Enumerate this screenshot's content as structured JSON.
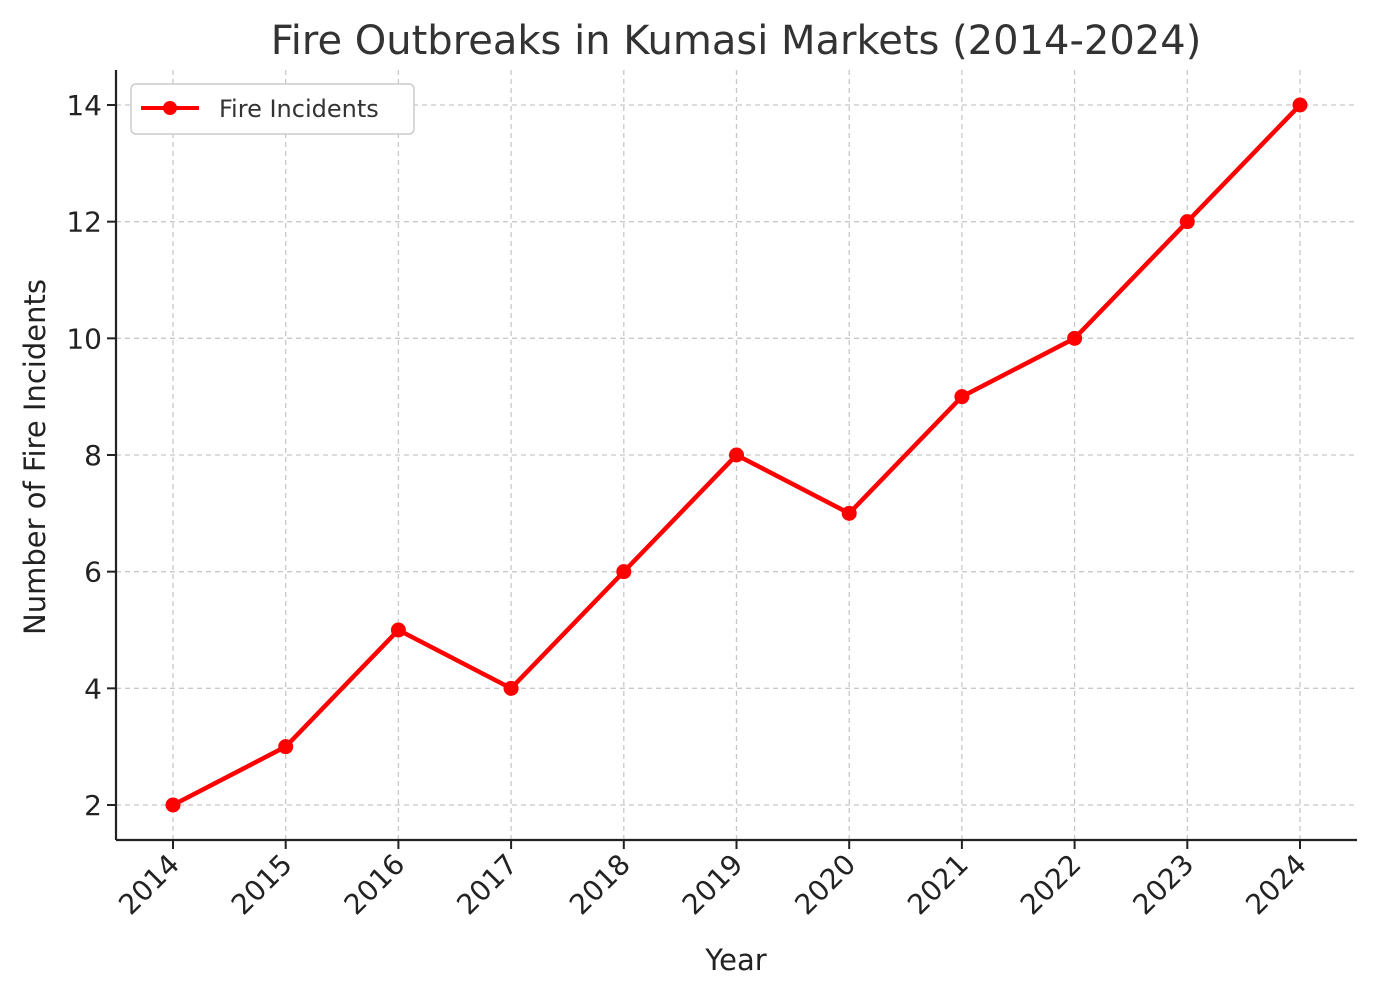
{
  "chart_data": {
    "type": "line",
    "title": "Fire Outbreaks in Kumasi Markets (2014-2024)",
    "xlabel": "Year",
    "ylabel": "Number of Fire Incidents",
    "categories": [
      "2014",
      "2015",
      "2016",
      "2017",
      "2018",
      "2019",
      "2020",
      "2021",
      "2022",
      "2023",
      "2024"
    ],
    "series": [
      {
        "name": "Fire Incidents",
        "values": [
          2,
          3,
          5,
          4,
          6,
          8,
          7,
          9,
          10,
          12,
          14
        ],
        "color": "#ff0000",
        "marker": "circle"
      }
    ],
    "yticks": [
      2,
      4,
      6,
      8,
      10,
      12,
      14
    ],
    "ylim": [
      1.4,
      14.6
    ],
    "grid": true,
    "legend_position": "top-left",
    "x_tick_rotation": "45 degrees"
  }
}
